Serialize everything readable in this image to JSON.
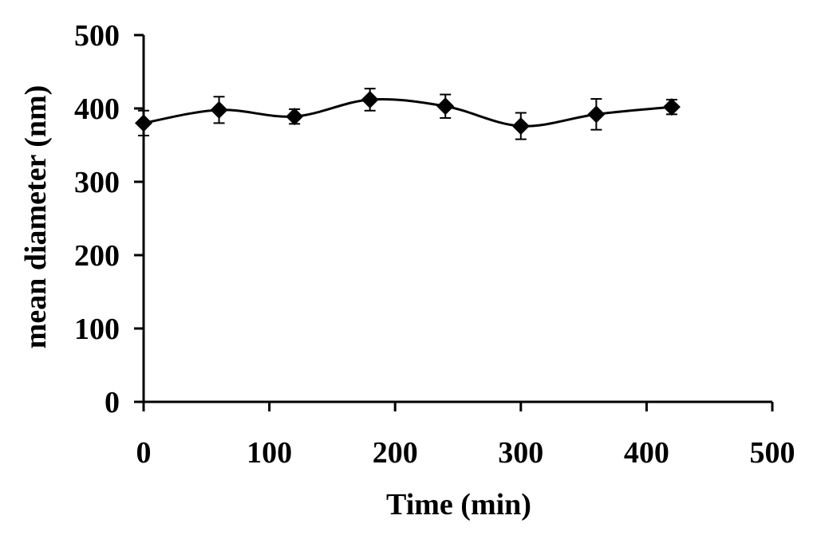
{
  "chart_data": {
    "type": "line",
    "title": "",
    "xlabel": "Time (min)",
    "ylabel": "mean diameter (nm)",
    "xlim": [
      0,
      500
    ],
    "ylim": [
      0,
      500
    ],
    "xticks": [
      0,
      100,
      200,
      300,
      400,
      500
    ],
    "yticks": [
      0,
      100,
      200,
      300,
      400,
      500
    ],
    "xtick_labels": [
      "0",
      "100",
      "200",
      "300",
      "400",
      "500"
    ],
    "ytick_labels": [
      "0",
      "100",
      "200",
      "300",
      "400",
      "500"
    ],
    "grid": false,
    "smooth": true,
    "marker": "diamond",
    "color": "#000000",
    "series": [
      {
        "x": [
          0,
          60,
          120,
          180,
          240,
          300,
          360,
          420
        ],
        "y": [
          380,
          398,
          389,
          412,
          403,
          376,
          392,
          402
        ],
        "error": [
          17,
          18,
          10,
          15,
          16,
          18,
          21,
          10
        ]
      }
    ]
  }
}
